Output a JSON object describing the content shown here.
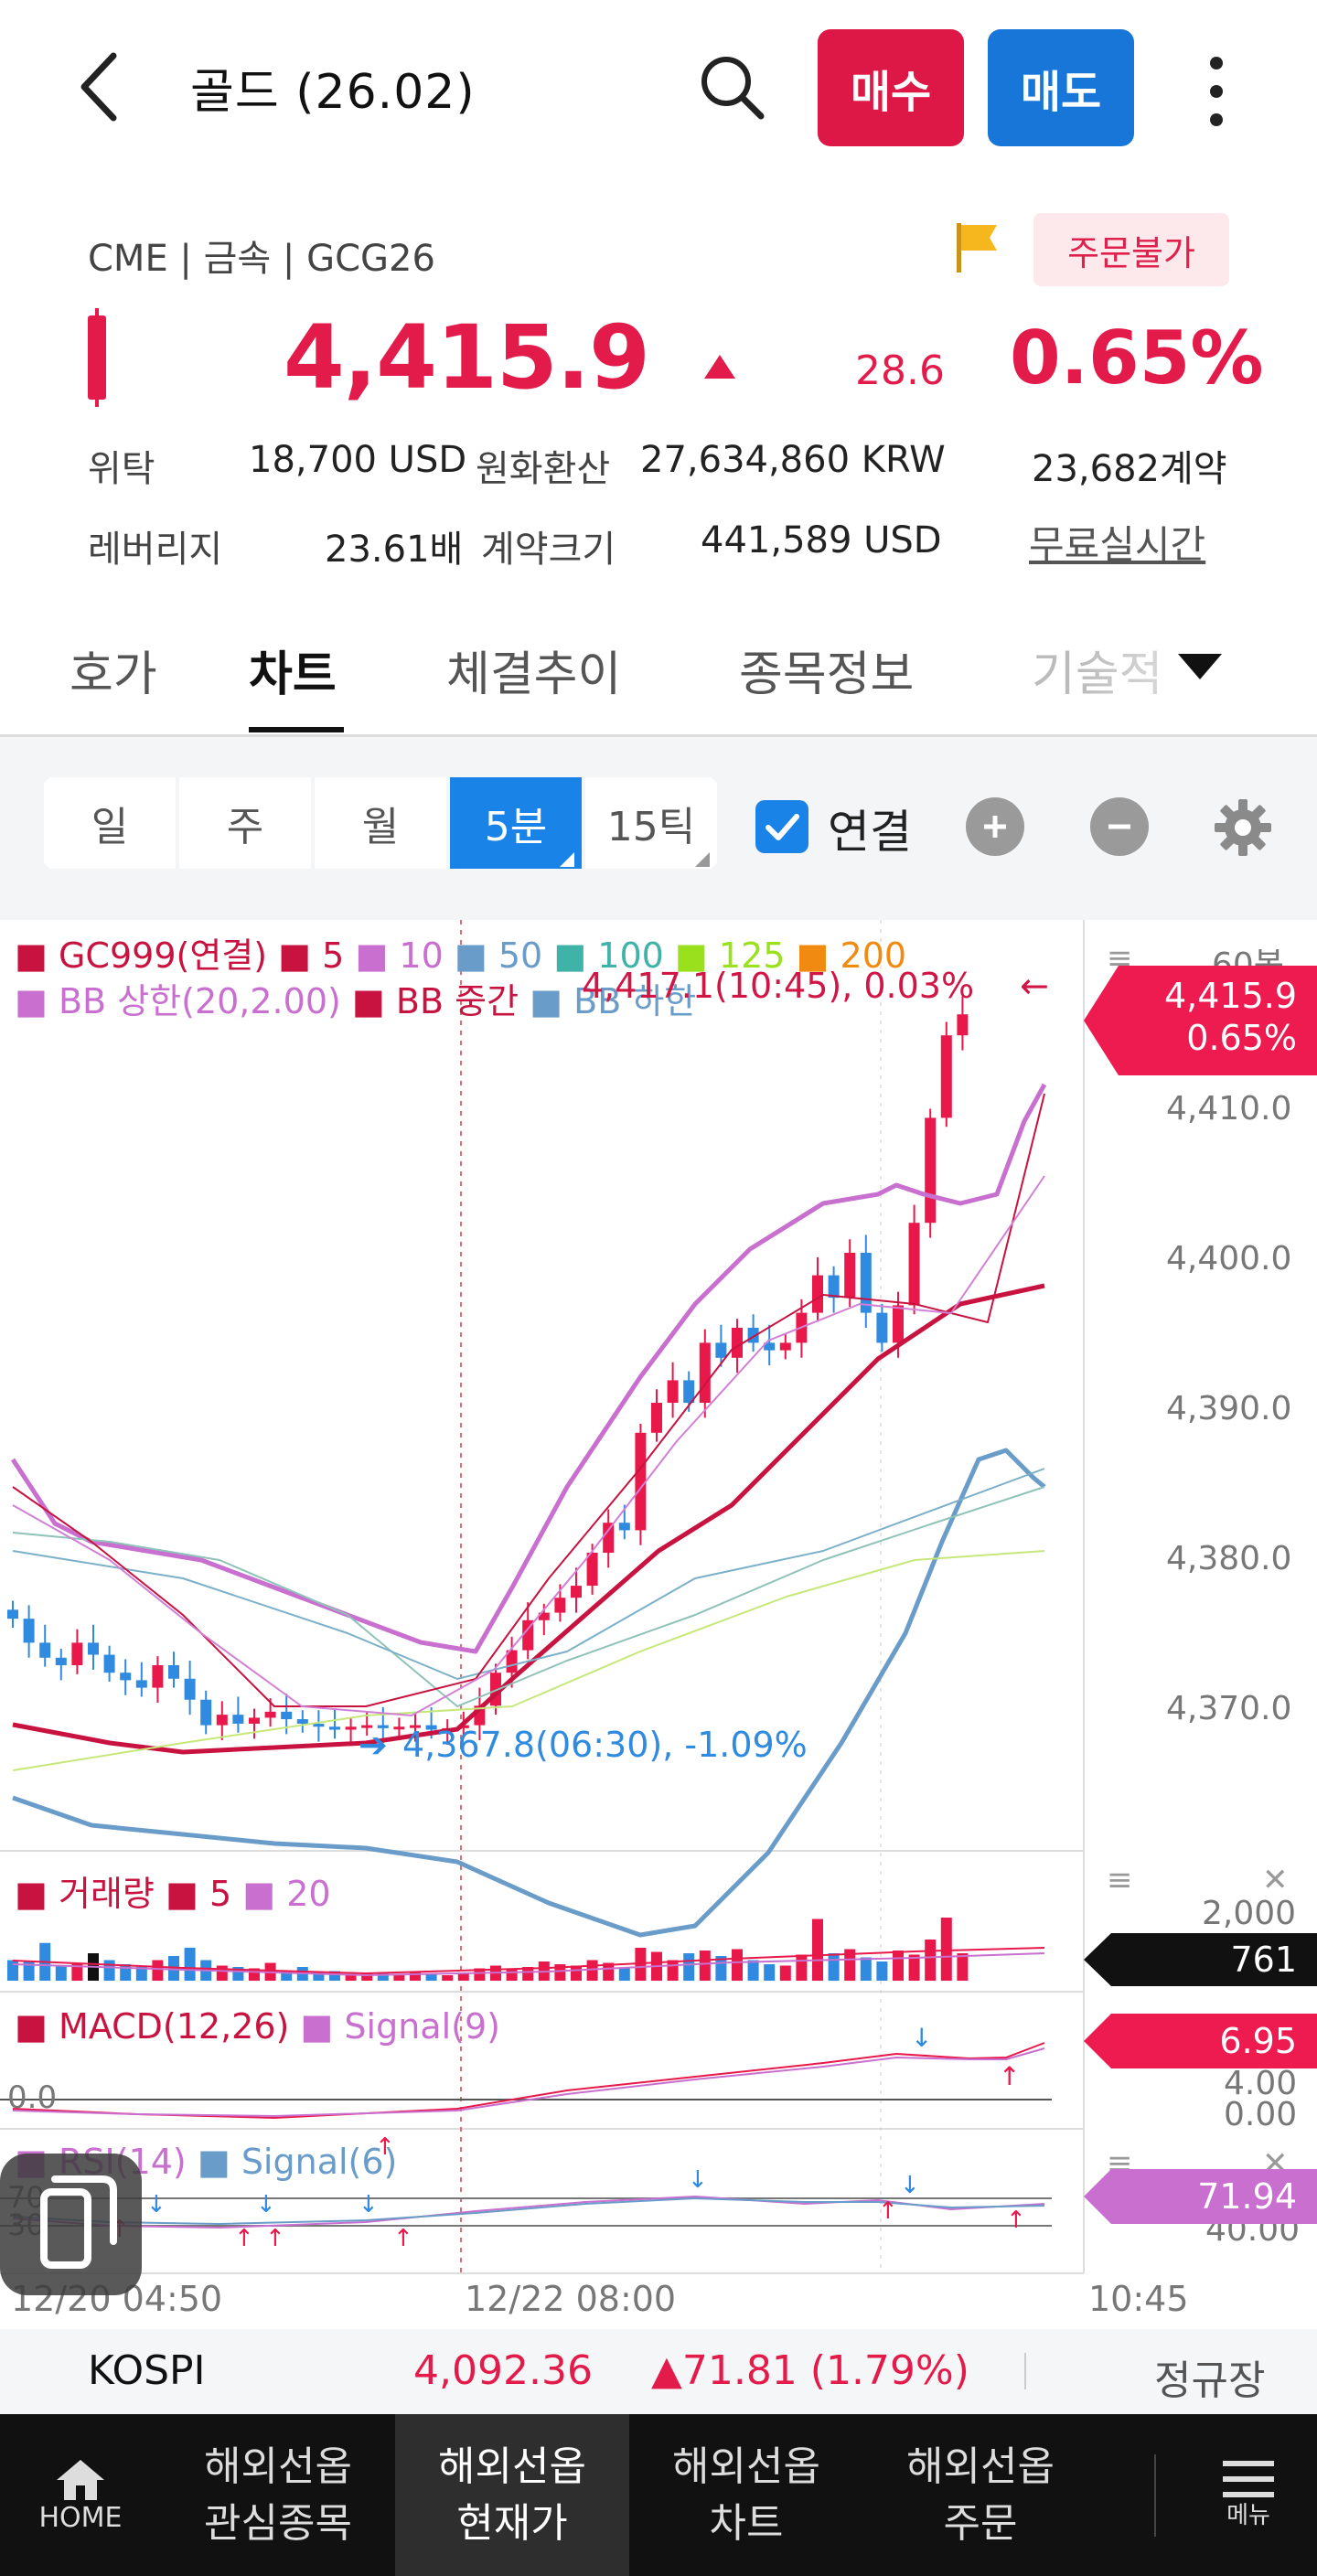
{
  "header": {
    "title": "골드 (26.02)",
    "buy_label": "매수",
    "sell_label": "매도"
  },
  "instrument": {
    "market_info": "CME | 금속 | GCG26",
    "order_status": "주문불가",
    "price": "4,415.9",
    "change": "28.6",
    "change_pct": "0.65%",
    "margin_label": "위탁",
    "margin_value": "18,700 USD",
    "krw_label": "원화환산",
    "krw_value": "27,634,860 KRW",
    "contracts": "23,682계약",
    "leverage_label": "레버리지",
    "leverage_value": "23.61배",
    "size_label": "계약크기",
    "size_value": "441,589 USD",
    "realtime_link": "무료실시간"
  },
  "tabs": [
    {
      "label": "호가"
    },
    {
      "label": "차트"
    },
    {
      "label": "체결추이"
    },
    {
      "label": "종목정보"
    },
    {
      "label": "기술적"
    }
  ],
  "chart_toolbar": {
    "periods": [
      {
        "label": "일"
      },
      {
        "label": "주"
      },
      {
        "label": "월"
      },
      {
        "label": "5분"
      },
      {
        "label": "15틱"
      }
    ],
    "link_label": "연결"
  },
  "chart": {
    "legend1": {
      "main": "GC999(연결)",
      "ma5": "5",
      "ma10": "10",
      "ma50": "50",
      "ma100": "100",
      "ma125": "125",
      "ma200": "200"
    },
    "legend2": {
      "bb_upper": "BB 상한(20,2.00)",
      "bb_mid": "BB 중간",
      "bb_lower": "BB 하한"
    },
    "bar_count": "60봉",
    "high_annotation": "4,417.1(10:45), 0.03%",
    "low_annotation": "4,367.8(06:30), -1.09%",
    "y_ticks": [
      "4,410.0",
      "4,400.0",
      "4,390.0",
      "4,380.0",
      "4,370.0"
    ],
    "price_tag": {
      "price": "4,415.9",
      "pct": "0.65%"
    },
    "colors": {
      "up": "#e8194a",
      "down": "#2f8ae0",
      "bb_upper": "#c86fcf",
      "bb_mid": "#c8123f",
      "bb_lower": "#6a9cc9"
    },
    "volume": {
      "label": "거래량",
      "ma5": "5",
      "ma20": "20",
      "axis": "2,000",
      "tag": "761"
    },
    "macd": {
      "label": "MACD(12,26)",
      "signal": "Signal(9)",
      "zero": "0.0",
      "axis_top": "4.00",
      "axis_bottom": "0.00",
      "tag": "6.95"
    },
    "rsi": {
      "label": "RSI(14)",
      "signal": "Signal(6)",
      "y1": "70",
      "y2": "30",
      "axis": "40.00",
      "tag": "71.94"
    },
    "x_labels": [
      "12/20 04:50",
      "12/22 08:00",
      "10:45"
    ]
  },
  "ticker": {
    "name": "KOSPI",
    "value": "4,092.36",
    "change": "▲71.81 (1.79%)",
    "session": "정규장"
  },
  "bottom_nav": [
    {
      "label": "HOME"
    },
    {
      "label": "해외선옵\n관심종목"
    },
    {
      "label": "해외선옵\n현재가"
    },
    {
      "label": "해외선옵\n차트"
    },
    {
      "label": "해외선옵\n주문"
    },
    {
      "label": "메뉴"
    }
  ]
}
